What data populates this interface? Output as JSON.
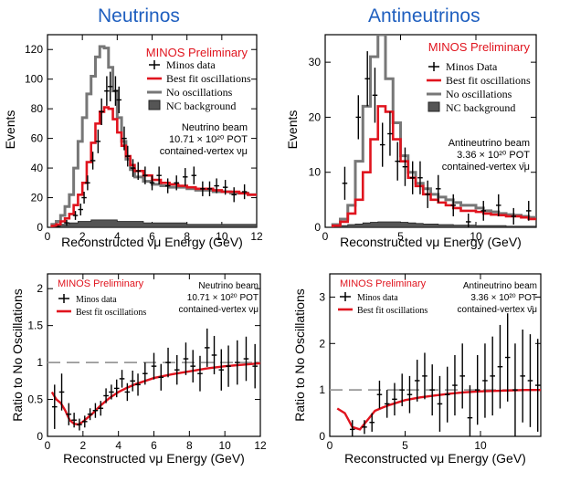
{
  "titles": {
    "left": "Neutrinos",
    "right": "Antineutrinos"
  },
  "colors": {
    "title": "#1f5fbf",
    "best_fit": "#e0141e",
    "no_osc": "#777777",
    "nc": "#555555",
    "data": "#000000"
  },
  "chart_data": [
    {
      "type": "histogram",
      "panel": "top-left",
      "preliminary": "MINOS Preliminary",
      "ylabel": "Events",
      "xlabel": "Reconstructed νμ Energy (GeV)",
      "xlim": [
        0,
        12
      ],
      "ylim": [
        0,
        130
      ],
      "xticks": [
        0,
        2,
        4,
        6,
        8,
        10,
        12
      ],
      "yticks": [
        0,
        20,
        40,
        60,
        80,
        100,
        120
      ],
      "legend": [
        "Minos data",
        "Best fit oscillations",
        "No oscillations",
        "NC background"
      ],
      "beam_lines": [
        "Neutrino beam",
        "10.71 × 10²⁰ POT",
        "contained-vertex νμ"
      ],
      "bin_edges": [
        0.25,
        0.5,
        0.75,
        1,
        1.25,
        1.5,
        1.75,
        2,
        2.25,
        2.5,
        2.75,
        3,
        3.25,
        3.5,
        3.75,
        4,
        4.25,
        4.5,
        4.75,
        5,
        5.5,
        6,
        6.5,
        7,
        7.5,
        8,
        8.5,
        9,
        9.5,
        10,
        10.5,
        11,
        11.5,
        12
      ],
      "best_fit": [
        1,
        2,
        4,
        6,
        9,
        15,
        22,
        30,
        44,
        57,
        70,
        78,
        81,
        80,
        73,
        64,
        55,
        48,
        42,
        38,
        35,
        32,
        30,
        29,
        28,
        27,
        26,
        26,
        25,
        24,
        24,
        23,
        22
      ],
      "no_osc": [
        2,
        4,
        8,
        14,
        22,
        40,
        58,
        74,
        90,
        102,
        115,
        122,
        121,
        108,
        92,
        74,
        58,
        46,
        39,
        34,
        31,
        29,
        28,
        27,
        27,
        26,
        25,
        25,
        24,
        24,
        23,
        23,
        22
      ],
      "nc_background": [
        1,
        1,
        2,
        2,
        3,
        3,
        4,
        4,
        4,
        5,
        5,
        5,
        5,
        5,
        5,
        4,
        4,
        4,
        4,
        4,
        3,
        3,
        3,
        3,
        3,
        2,
        2,
        2,
        2,
        2,
        2,
        2,
        2
      ],
      "data_points": {
        "x": [
          0.6,
          1.1,
          1.6,
          1.9,
          2.1,
          2.3,
          2.6,
          2.9,
          3.1,
          3.4,
          3.6,
          3.9,
          4.1,
          4.4,
          4.6,
          4.9,
          5.2,
          5.6,
          6.0,
          6.4,
          6.9,
          7.4,
          7.9,
          8.4,
          8.9,
          9.3,
          9.7,
          10.2,
          10.7,
          11.3
        ],
        "y": [
          0,
          3,
          8,
          12,
          20,
          30,
          45,
          58,
          78,
          92,
          95,
          92,
          86,
          60,
          48,
          40,
          38,
          35,
          30,
          35,
          28,
          30,
          34,
          35,
          26,
          26,
          28,
          27,
          22,
          24
        ],
        "err": [
          1,
          2,
          3,
          4,
          4,
          5,
          6,
          8,
          9,
          10,
          10,
          10,
          9,
          8,
          7,
          6,
          6,
          6,
          5,
          6,
          5,
          5,
          6,
          6,
          5,
          5,
          5,
          5,
          5,
          5
        ]
      }
    },
    {
      "type": "histogram",
      "panel": "top-right",
      "preliminary": "MINOS Preliminary",
      "ylabel": "Events",
      "xlabel": "Reconstructed νμ Energy (GeV)",
      "xlim": [
        0,
        14
      ],
      "ylim": [
        0,
        35
      ],
      "xticks": [
        0,
        5,
        10
      ],
      "yticks": [
        0,
        10,
        20,
        30
      ],
      "legend": [
        "Minos Data",
        "Best fit oscillations",
        "No oscillations",
        "NC background"
      ],
      "beam_lines": [
        "Antineutrino beam",
        "3.36 × 10²⁰ POT",
        "contained-vertex ν̄μ"
      ],
      "bin_edges": [
        0.5,
        1,
        1.5,
        2,
        2.5,
        3,
        3.5,
        4,
        4.5,
        5,
        5.5,
        6,
        6.5,
        7,
        7.5,
        8,
        8.5,
        9,
        9.5,
        10,
        10.5,
        11,
        11.5,
        12,
        12.5,
        13,
        13.5,
        14
      ],
      "best_fit": [
        0.3,
        1,
        2.5,
        5,
        10,
        16,
        22,
        21,
        16,
        12,
        9,
        7.5,
        6,
        5,
        4.5,
        4,
        3.5,
        3,
        3,
        2.8,
        2.5,
        2.3,
        2.2,
        2,
        2,
        1.8,
        1.5
      ],
      "no_osc": [
        0.5,
        1.5,
        4,
        12,
        22,
        31,
        35,
        27,
        19,
        13,
        10,
        8,
        7,
        6,
        5.5,
        5,
        4.5,
        4,
        4,
        3.5,
        3,
        2.8,
        2.5,
        2.3,
        2.2,
        2,
        1.8
      ],
      "nc_background": [
        0.2,
        0.3,
        0.5,
        0.6,
        0.8,
        0.9,
        1,
        1,
        1,
        0.9,
        0.8,
        0.7,
        0.6,
        0.6,
        0.5,
        0.5,
        0.4,
        0.4,
        0.4,
        0.3,
        0.3,
        0.3,
        0.3,
        0.2,
        0.2,
        0.2,
        0.2
      ],
      "data_points": {
        "x": [
          1.3,
          2.2,
          2.8,
          3.3,
          3.8,
          4.3,
          4.8,
          5.3,
          5.8,
          6.3,
          6.8,
          7.5,
          8.5,
          9.5,
          10.5,
          11.5,
          12.5,
          13.5
        ],
        "y": [
          8,
          20,
          27,
          24,
          15,
          17,
          12,
          11,
          9,
          9,
          6,
          7,
          4,
          1,
          3,
          4,
          2,
          3
        ],
        "err": [
          3,
          4,
          5,
          5,
          4,
          4,
          3.5,
          3.5,
          3,
          3,
          2.5,
          2.5,
          2,
          1.5,
          1.8,
          2,
          1.5,
          1.8
        ]
      }
    },
    {
      "type": "line",
      "panel": "bottom-left",
      "preliminary": "MINOS Preliminary",
      "ylabel": "Ratio to No Oscillations",
      "xlabel": "Reconstructed νμ Energy (GeV)",
      "xlim": [
        0,
        12
      ],
      "ylim": [
        0,
        2.2
      ],
      "xticks": [
        0,
        2,
        4,
        6,
        8,
        10,
        12
      ],
      "yticks": [
        0,
        0.5,
        1,
        1.5,
        2
      ],
      "ytick_labels": [
        "0",
        "0.5",
        "1",
        "1.5",
        "2"
      ],
      "reference": 1,
      "legend": [
        "Minos data",
        "Best fit oscillations"
      ],
      "beam_lines": [
        "Neutrino beam",
        "10.71 × 10²⁰ POT",
        "contained-vertex νμ"
      ],
      "best_fit": {
        "x": [
          0.25,
          0.5,
          0.75,
          1,
          1.25,
          1.5,
          1.75,
          2,
          2.5,
          3,
          3.5,
          4,
          4.5,
          5,
          5.5,
          6,
          7,
          8,
          9,
          10,
          11,
          12
        ],
        "y": [
          0.6,
          0.5,
          0.45,
          0.35,
          0.22,
          0.17,
          0.16,
          0.2,
          0.3,
          0.42,
          0.52,
          0.6,
          0.66,
          0.71,
          0.75,
          0.79,
          0.84,
          0.88,
          0.92,
          0.95,
          0.97,
          0.99
        ]
      },
      "data_points": {
        "x": [
          0.4,
          0.8,
          1.2,
          1.5,
          1.8,
          2.1,
          2.4,
          2.7,
          3.0,
          3.3,
          3.6,
          3.9,
          4.2,
          4.5,
          4.8,
          5.1,
          5.5,
          6.0,
          6.4,
          6.8,
          7.3,
          7.8,
          8.2,
          8.6,
          9.0,
          9.4,
          9.8,
          10.2,
          10.7,
          11.2,
          11.7
        ],
        "y": [
          0.4,
          0.6,
          0.3,
          0.22,
          0.16,
          0.2,
          0.3,
          0.35,
          0.38,
          0.55,
          0.6,
          0.65,
          0.78,
          0.6,
          0.75,
          0.7,
          0.85,
          0.95,
          0.8,
          1.0,
          0.9,
          1.05,
          0.95,
          0.85,
          1.2,
          1.1,
          0.9,
          0.95,
          1.0,
          1.05,
          0.95
        ],
        "err": [
          0.3,
          0.25,
          0.15,
          0.1,
          0.08,
          0.08,
          0.08,
          0.1,
          0.1,
          0.1,
          0.1,
          0.12,
          0.12,
          0.12,
          0.14,
          0.15,
          0.15,
          0.18,
          0.18,
          0.2,
          0.2,
          0.22,
          0.22,
          0.24,
          0.26,
          0.26,
          0.28,
          0.28,
          0.3,
          0.3,
          0.3
        ]
      }
    },
    {
      "type": "line",
      "panel": "bottom-right",
      "preliminary": "MINOS Preliminary",
      "ylabel": "Ratio to No Oscillations",
      "xlabel": "Reconstructed νμ Energy (GeV)",
      "xlim": [
        0,
        14
      ],
      "ylim": [
        0,
        3.5
      ],
      "xticks": [
        0,
        5,
        10
      ],
      "yticks": [
        0,
        1,
        2,
        3
      ],
      "ytick_labels": [
        "0",
        "1",
        "2",
        "3"
      ],
      "reference": 1,
      "legend": [
        "Minos data",
        "Best fit oscillations"
      ],
      "beam_lines": [
        "Antineutrino beam",
        "3.36 × 10²⁰ POT",
        "contained-vertex ν̄μ"
      ],
      "best_fit": {
        "x": [
          0.5,
          1,
          1.5,
          2,
          2.5,
          3,
          3.5,
          4,
          5,
          6,
          7,
          8,
          9,
          10,
          11,
          12,
          13,
          14
        ],
        "y": [
          0.6,
          0.5,
          0.2,
          0.15,
          0.35,
          0.55,
          0.62,
          0.68,
          0.78,
          0.84,
          0.88,
          0.92,
          0.95,
          0.97,
          0.98,
          0.99,
          1.0,
          1.0
        ]
      },
      "data_points": {
        "x": [
          1.5,
          2.3,
          2.8,
          3.3,
          3.8,
          4.3,
          4.8,
          5.3,
          5.8,
          6.3,
          6.8,
          7.3,
          7.8,
          8.3,
          8.8,
          9.3,
          9.8,
          10.3,
          10.8,
          11.3,
          11.8,
          12.3,
          12.8,
          13.3,
          13.8
        ],
        "y": [
          0.15,
          0.2,
          0.3,
          0.9,
          0.7,
          0.8,
          1.0,
          0.9,
          1.2,
          1.3,
          1.0,
          0.7,
          0.9,
          1.1,
          1.3,
          0.4,
          1.0,
          1.2,
          1.3,
          1.5,
          1.7,
          1.0,
          1.3,
          1.2,
          1.1
        ],
        "err": [
          0.2,
          0.15,
          0.2,
          0.3,
          0.3,
          0.35,
          0.35,
          0.4,
          0.45,
          0.5,
          0.55,
          0.6,
          0.6,
          0.65,
          0.7,
          0.7,
          0.75,
          0.8,
          0.85,
          0.9,
          0.95,
          1.0,
          1.0,
          1.0,
          1.0
        ]
      }
    }
  ]
}
